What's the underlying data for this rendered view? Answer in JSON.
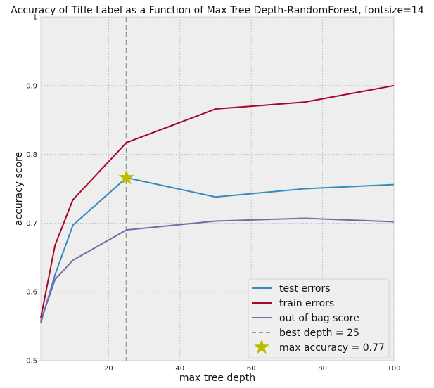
{
  "chart_data": {
    "type": "line",
    "title": "Accuracy of Title Label as a Function of Max Tree Depth-RandomForest, fontsize=14",
    "xlabel": "max tree depth",
    "ylabel": "accuracy score",
    "xlim": [
      1,
      100
    ],
    "ylim": [
      0.5,
      1.0
    ],
    "xticks": [
      20,
      40,
      60,
      80,
      100
    ],
    "yticks": [
      0.5,
      0.6,
      0.7,
      0.8,
      0.9,
      1.0
    ],
    "ytick_labels": [
      "0.5",
      "0.6",
      "0.7",
      "0.8",
      "0.9",
      "1"
    ],
    "grid": true,
    "legend_position": "bottom-right",
    "x": [
      1,
      5,
      10,
      25,
      50,
      75,
      100
    ],
    "series": [
      {
        "name": "test errors",
        "color": "#348abd",
        "values": [
          0.555,
          0.625,
          0.697,
          0.766,
          0.738,
          0.75,
          0.756
        ]
      },
      {
        "name": "train errors",
        "color": "#a60628",
        "values": [
          0.562,
          0.668,
          0.734,
          0.817,
          0.866,
          0.876,
          0.9
        ]
      },
      {
        "name": "out of bag score",
        "color": "#7a68a6",
        "values": [
          0.558,
          0.618,
          0.646,
          0.69,
          0.703,
          0.707,
          0.702
        ]
      }
    ],
    "best_depth": {
      "label": "best depth = 25",
      "x": 25,
      "color": "#999999"
    },
    "max_accuracy": {
      "label": "max accuracy = 0.77",
      "x": 25,
      "y": 0.766,
      "color": "#bcbc00"
    }
  }
}
